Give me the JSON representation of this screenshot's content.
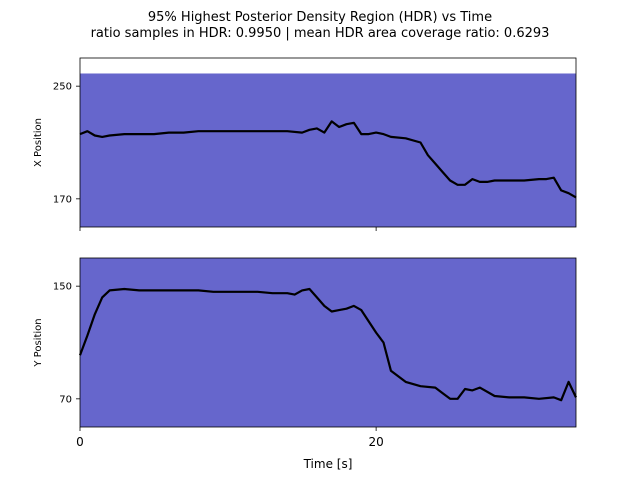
{
  "figure": {
    "title_line1": "95% Highest Posterior Density Region (HDR) vs Time",
    "title_line2": "ratio samples in HDR: 0.9950 | mean HDR area coverage ratio: 0.6293",
    "xlabel": "Time [s]"
  },
  "colors": {
    "hdr_fill": "#6666cc",
    "trajectory": "#000000",
    "background": "#ffffff"
  },
  "chart_data": [
    {
      "type": "area",
      "title": "",
      "xlabel": "Time [s]",
      "ylabel": "X Position",
      "xlim": [
        0,
        33.5
      ],
      "ylim": [
        150,
        270
      ],
      "yticks": [
        170,
        250
      ],
      "xticks": [
        0,
        20
      ],
      "xtick_labels_shown": false,
      "hdr_band": {
        "lower": 150,
        "upper": 259
      },
      "series": [
        {
          "x": [
            0,
            0.5,
            1,
            1.5,
            2,
            3,
            4,
            5,
            6,
            7,
            8,
            9,
            10,
            11,
            12,
            13,
            14,
            15,
            15.5,
            16,
            16.5,
            17,
            17.5,
            18,
            18.5,
            19,
            19.5,
            20,
            20.5,
            21,
            22,
            23,
            23.5,
            24,
            24.5,
            25,
            25.5,
            26,
            26.5,
            27,
            27.5,
            28,
            29,
            30,
            31,
            31.5,
            32,
            32.5,
            33,
            33.5
          ],
          "y": [
            216,
            218,
            215,
            214,
            215,
            216,
            216,
            216,
            217,
            217,
            218,
            218,
            218,
            218,
            218,
            218,
            218,
            217,
            219,
            220,
            217,
            225,
            221,
            223,
            224,
            216,
            216,
            217,
            216,
            214,
            213,
            210,
            201,
            195,
            189,
            183,
            180,
            180,
            184,
            182,
            182,
            183,
            183,
            183,
            184,
            184,
            185,
            176,
            174,
            171
          ]
        }
      ]
    },
    {
      "type": "area",
      "title": "",
      "xlabel": "Time [s]",
      "ylabel": "Y Position",
      "xlim": [
        0,
        33.5
      ],
      "ylim": [
        50,
        170
      ],
      "yticks": [
        70,
        150
      ],
      "xticks": [
        0,
        20
      ],
      "xtick_labels_shown": true,
      "hdr_band": {
        "lower": 50,
        "upper": 170
      },
      "series": [
        {
          "x": [
            0,
            0.5,
            1,
            1.5,
            2,
            3,
            4,
            5,
            6,
            7,
            8,
            9,
            10,
            11,
            12,
            13,
            14,
            14.5,
            15,
            15.5,
            16,
            16.5,
            17,
            17.5,
            18,
            18.5,
            19,
            19.5,
            20,
            20.5,
            21,
            22,
            23,
            24,
            24.5,
            25,
            25.5,
            26,
            26.5,
            27,
            28,
            29,
            30,
            31,
            32,
            32.5,
            33,
            33.5
          ],
          "y": [
            101,
            115,
            130,
            142,
            147,
            148,
            147,
            147,
            147,
            147,
            147,
            146,
            146,
            146,
            146,
            145,
            145,
            144,
            147,
            148,
            142,
            136,
            132,
            133,
            134,
            136,
            133,
            125,
            117,
            110,
            90,
            82,
            79,
            78,
            74,
            70,
            70,
            77,
            76,
            78,
            72,
            71,
            71,
            70,
            71,
            69,
            82,
            71
          ]
        }
      ]
    }
  ]
}
